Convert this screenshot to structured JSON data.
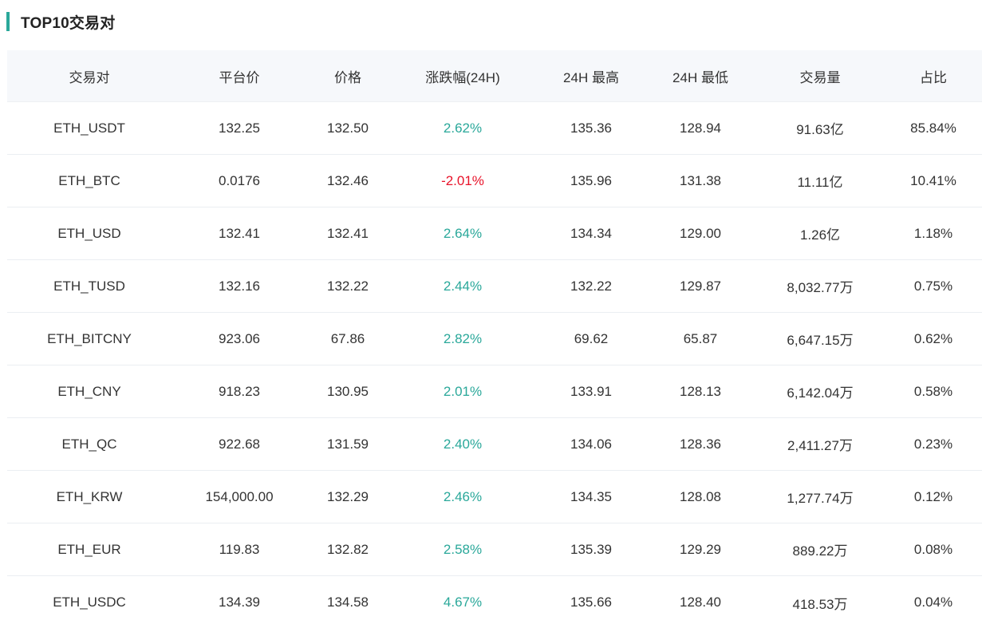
{
  "section": {
    "title": "TOP10交易对"
  },
  "colors": {
    "accent": "#2aa89a",
    "up": "#2aa89a",
    "down": "#e8132a",
    "header_bg": "#f6f8fb"
  },
  "table": {
    "columns": [
      "交易对",
      "平台价",
      "价格",
      "涨跌幅(24H)",
      "24H 最高",
      "24H 最低",
      "交易量",
      "占比"
    ],
    "rows": [
      {
        "pair": "ETH_USDT",
        "platform_price": "132.25",
        "price": "132.50",
        "change": "2.62%",
        "direction": "up",
        "high": "135.36",
        "low": "128.94",
        "volume": "91.63亿",
        "share": "85.84%"
      },
      {
        "pair": "ETH_BTC",
        "platform_price": "0.0176",
        "price": "132.46",
        "change": "-2.01%",
        "direction": "down",
        "high": "135.96",
        "low": "131.38",
        "volume": "11.11亿",
        "share": "10.41%"
      },
      {
        "pair": "ETH_USD",
        "platform_price": "132.41",
        "price": "132.41",
        "change": "2.64%",
        "direction": "up",
        "high": "134.34",
        "low": "129.00",
        "volume": "1.26亿",
        "share": "1.18%"
      },
      {
        "pair": "ETH_TUSD",
        "platform_price": "132.16",
        "price": "132.22",
        "change": "2.44%",
        "direction": "up",
        "high": "132.22",
        "low": "129.87",
        "volume": "8,032.77万",
        "share": "0.75%"
      },
      {
        "pair": "ETH_BITCNY",
        "platform_price": "923.06",
        "price": "67.86",
        "change": "2.82%",
        "direction": "up",
        "high": "69.62",
        "low": "65.87",
        "volume": "6,647.15万",
        "share": "0.62%"
      },
      {
        "pair": "ETH_CNY",
        "platform_price": "918.23",
        "price": "130.95",
        "change": "2.01%",
        "direction": "up",
        "high": "133.91",
        "low": "128.13",
        "volume": "6,142.04万",
        "share": "0.58%"
      },
      {
        "pair": "ETH_QC",
        "platform_price": "922.68",
        "price": "131.59",
        "change": "2.40%",
        "direction": "up",
        "high": "134.06",
        "low": "128.36",
        "volume": "2,411.27万",
        "share": "0.23%"
      },
      {
        "pair": "ETH_KRW",
        "platform_price": "154,000.00",
        "price": "132.29",
        "change": "2.46%",
        "direction": "up",
        "high": "134.35",
        "low": "128.08",
        "volume": "1,277.74万",
        "share": "0.12%"
      },
      {
        "pair": "ETH_EUR",
        "platform_price": "119.83",
        "price": "132.82",
        "change": "2.58%",
        "direction": "up",
        "high": "135.39",
        "low": "129.29",
        "volume": "889.22万",
        "share": "0.08%"
      },
      {
        "pair": "ETH_USDC",
        "platform_price": "134.39",
        "price": "134.58",
        "change": "4.67%",
        "direction": "up",
        "high": "135.66",
        "low": "128.40",
        "volume": "418.53万",
        "share": "0.04%"
      }
    ]
  }
}
